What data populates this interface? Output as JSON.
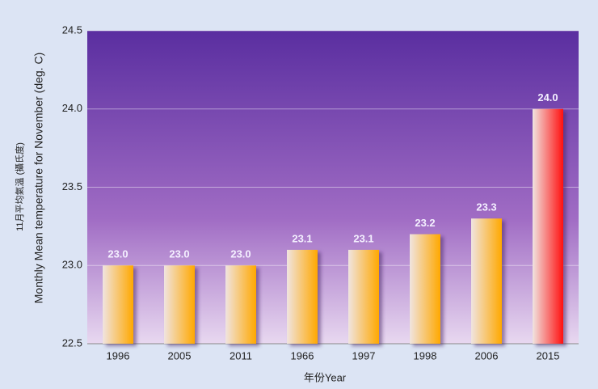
{
  "chart_data": {
    "type": "bar",
    "y_label_zh": "11月平均氣溫 (攝氏度)",
    "y_label": "Monthly Mean temperature  for November (deg. C)",
    "x_label": "年份Year",
    "categories": [
      "1996",
      "2005",
      "2011",
      "1966",
      "1997",
      "1998",
      "2006",
      "2015"
    ],
    "values": [
      23.0,
      23.0,
      23.0,
      23.1,
      23.1,
      23.2,
      23.3,
      24.0
    ],
    "value_labels": [
      "23.0",
      "23.0",
      "23.0",
      "23.1",
      "23.1",
      "23.2",
      "23.3",
      "24.0"
    ],
    "colors": [
      "#ffa800",
      "#ffa800",
      "#ffa800",
      "#ffa800",
      "#ffa800",
      "#ffa800",
      "#ffa800",
      "#ff1010"
    ],
    "ylim": [
      22.5,
      24.5
    ],
    "yticks": [
      22.5,
      {
        "value": 23,
        "label": "23.0"
      },
      23.5,
      {
        "value": 24,
        "label": "24.0"
      },
      24.5
    ],
    "grid": true
  }
}
